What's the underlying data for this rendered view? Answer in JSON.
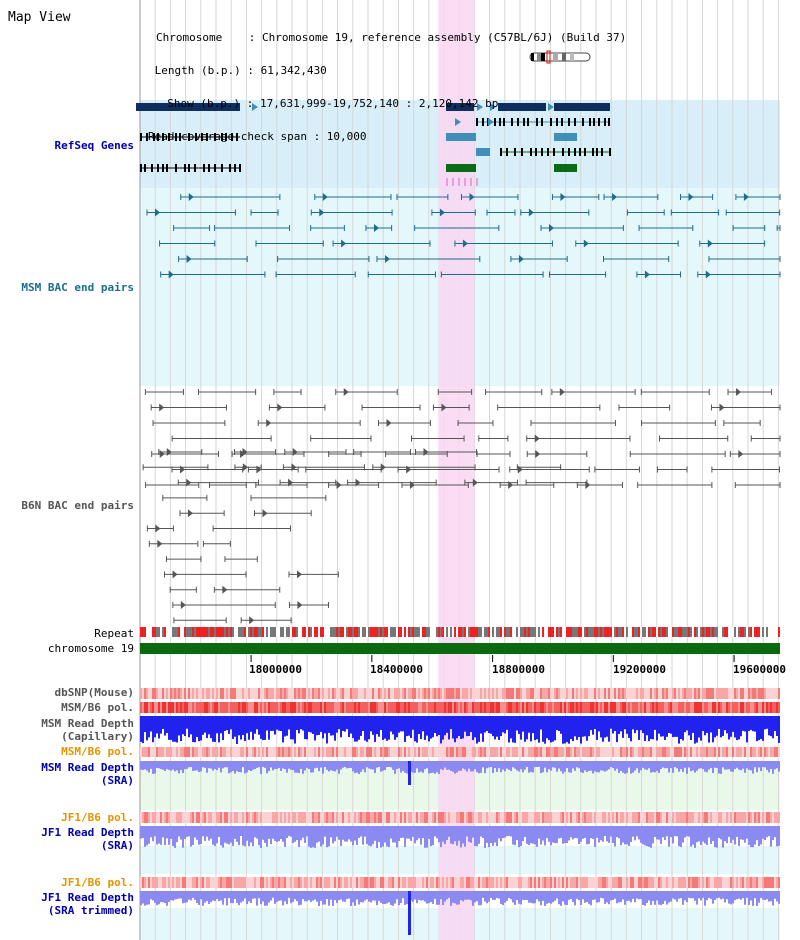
{
  "view": {
    "title": "Map View"
  },
  "header": {
    "lines": [
      "Chromosome    : Chromosome 19, reference assembly (C57BL/6J) (Build 37)",
      " Length (b.p.) : 61,342,430",
      "  Show (b.p.) : 17,631,999-19,752,140 : 2,120,142 bp",
      "Read coverage check span : 10,000"
    ]
  },
  "tracks": {
    "refseq": "RefSeq Genes",
    "msm_bac": "MSM BAC end pairs",
    "b6n_bac": "B6N BAC end pairs",
    "repeat": "Repeat",
    "chromosome": "chromosome 19",
    "dbsnp": "dbSNP(Mouse)",
    "msm_b6_pol_1": "MSM/B6 pol.",
    "msm_depth_cap_1": "MSM Read Depth",
    "msm_depth_cap_2": "(Capillary)",
    "msm_b6_pol_2": "MSM/B6 pol.",
    "msm_depth_sra_1": "MSM Read Depth",
    "msm_depth_sra_2": "(SRA)",
    "jf1_b6_pol_1": "JF1/B6 pol.",
    "jf1_depth_sra_1": "JF1 Read Depth",
    "jf1_depth_sra_2": "(SRA)",
    "jf1_b6_pol_2": "JF1/B6 pol.",
    "jf1_depth_trim_1": "JF1 Read Depth",
    "jf1_depth_trim_2": "(SRA trimmed)"
  },
  "axis": {
    "range": [
      17631999,
      19752140
    ],
    "ticks": [
      "18000000",
      "18400000",
      "18800000",
      "19200000",
      "19600000"
    ],
    "tick_values": [
      18000000,
      18400000,
      18800000,
      19200000,
      19600000
    ]
  },
  "highlight": {
    "start": 18620000,
    "end": 18740000,
    "color": "#f9d6f2"
  },
  "colors": {
    "refseq_dark": "#0d2e5e",
    "refseq_mid": "#3f8fb8",
    "refseq_green": "#0a6a18",
    "refseq_bg": "#d8eff9",
    "msm_bg": "#e4f8fb",
    "msm_line": "#1c6d8b",
    "b6n_line": "#555555",
    "repeat_red": "#ee2222",
    "chrom_green": "#0b6a10",
    "depth_blue": "#2222ee",
    "depth_light": "#8a8af0",
    "label_blue": "#0000aa",
    "label_orange": "#e69500",
    "label_teal": "#1c6d8b",
    "label_gray": "#555555"
  }
}
